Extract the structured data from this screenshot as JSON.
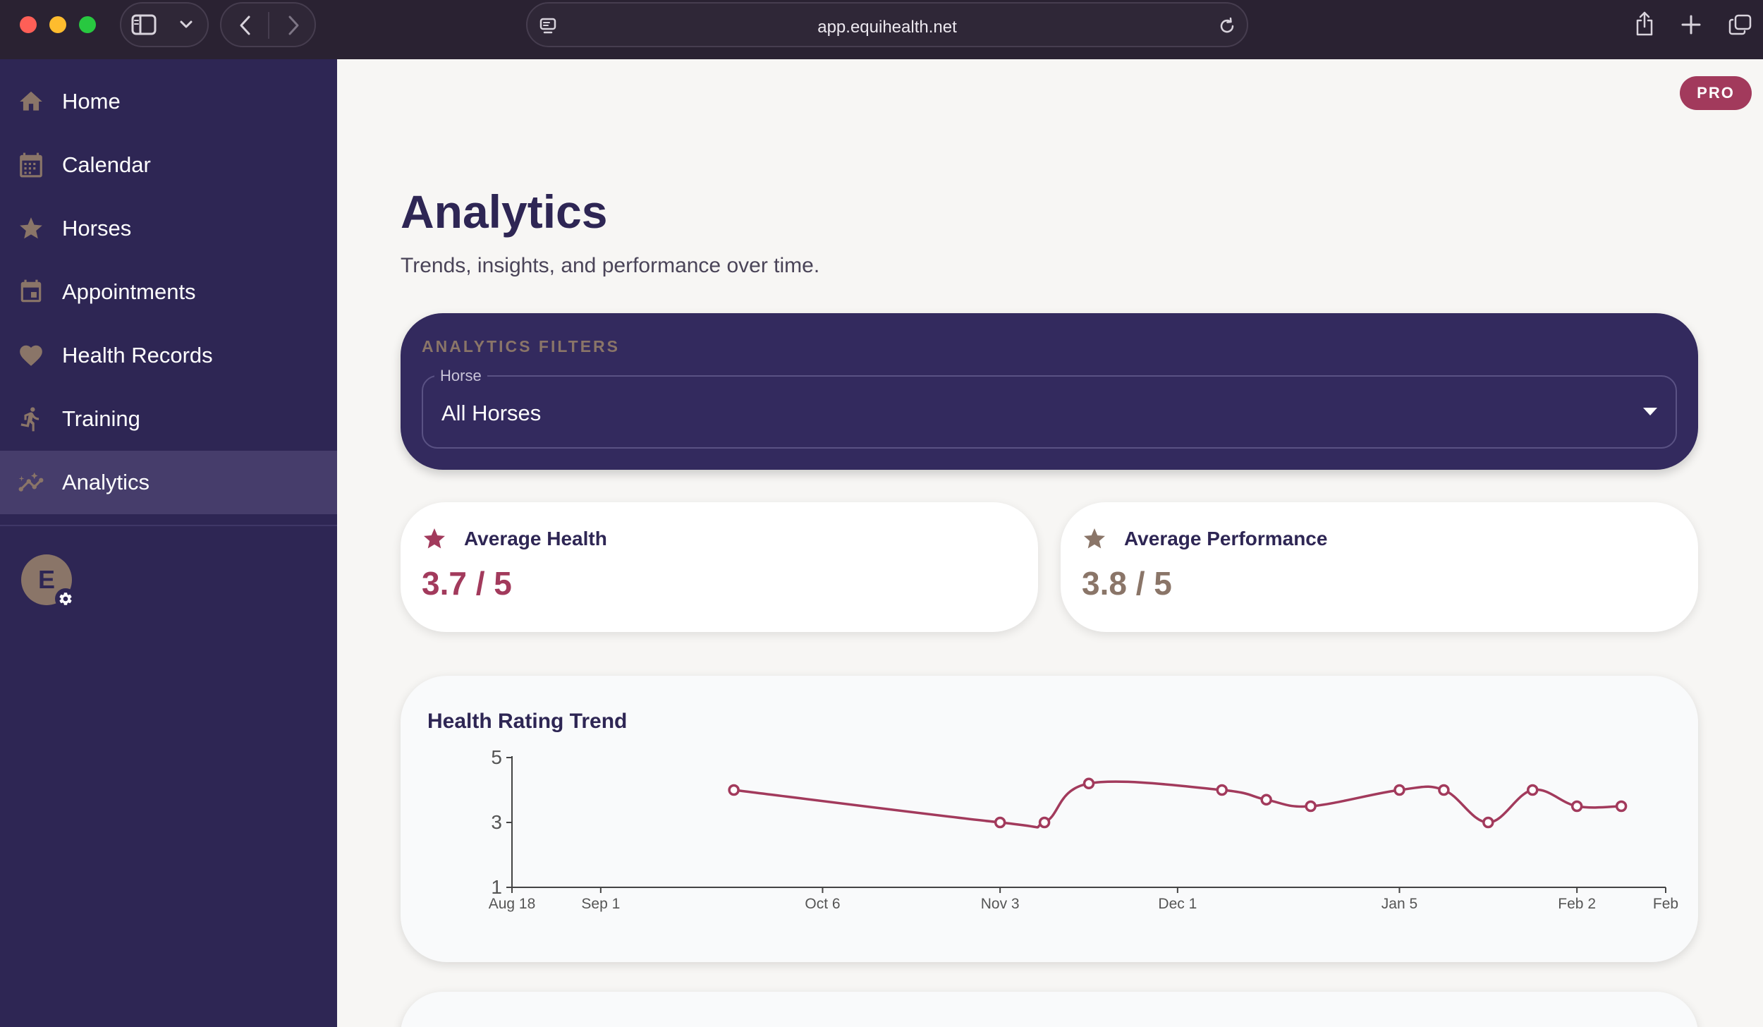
{
  "browser": {
    "url": "app.equihealth.net"
  },
  "sidebar": {
    "items": [
      {
        "label": "Home",
        "icon": "home-icon"
      },
      {
        "label": "Calendar",
        "icon": "calendar-icon"
      },
      {
        "label": "Horses",
        "icon": "star-icon"
      },
      {
        "label": "Appointments",
        "icon": "calendar-event-icon"
      },
      {
        "label": "Health Records",
        "icon": "heart-icon"
      },
      {
        "label": "Training",
        "icon": "running-icon"
      },
      {
        "label": "Analytics",
        "icon": "trend-icon",
        "active": true
      }
    ],
    "avatar_initial": "E"
  },
  "header": {
    "badge": "PRO",
    "title": "Analytics",
    "subtitle": "Trends, insights, and performance over time."
  },
  "filters": {
    "title": "ANALYTICS FILTERS",
    "horse_label": "Horse",
    "horse_value": "All Horses"
  },
  "stats": {
    "health": {
      "label": "Average Health",
      "value": "3.7 / 5",
      "color": "#a23a5c"
    },
    "performance": {
      "label": "Average Performance",
      "value": "3.8 / 5",
      "color": "#8a7568"
    }
  },
  "colors": {
    "sidebar_bg": "#2e2654",
    "accent": "#a23a5c",
    "muted_brown": "#8a7568"
  },
  "chart_data": {
    "type": "line",
    "title": "Health Rating Trend",
    "xlabel": "",
    "ylabel": "",
    "ylim": [
      1,
      5
    ],
    "yticks": [
      1,
      3,
      5
    ],
    "xlim": [
      "2024-08-18",
      "2025-02-16"
    ],
    "xticks": [
      {
        "date": "2024-08-18",
        "label": "Aug 18"
      },
      {
        "date": "2024-09-01",
        "label": "Sep 1"
      },
      {
        "date": "2024-10-06",
        "label": "Oct 6"
      },
      {
        "date": "2024-11-03",
        "label": "Nov 3"
      },
      {
        "date": "2024-12-01",
        "label": "Dec 1"
      },
      {
        "date": "2025-01-05",
        "label": "Jan 5"
      },
      {
        "date": "2025-02-02",
        "label": "Feb 2"
      },
      {
        "date": "2025-02-16",
        "label": "Feb"
      }
    ],
    "series": [
      {
        "color": "#a23a5c",
        "points": [
          {
            "x": "2024-09-22",
            "y": 4.0
          },
          {
            "x": "2024-11-03",
            "y": 3.0
          },
          {
            "x": "2024-11-10",
            "y": 3.0
          },
          {
            "x": "2024-11-17",
            "y": 4.2
          },
          {
            "x": "2024-12-08",
            "y": 4.0
          },
          {
            "x": "2024-12-15",
            "y": 3.7
          },
          {
            "x": "2024-12-22",
            "y": 3.5
          },
          {
            "x": "2025-01-05",
            "y": 4.0
          },
          {
            "x": "2025-01-12",
            "y": 4.0
          },
          {
            "x": "2025-01-19",
            "y": 3.0
          },
          {
            "x": "2025-01-26",
            "y": 4.0
          },
          {
            "x": "2025-02-02",
            "y": 3.5
          },
          {
            "x": "2025-02-09",
            "y": 3.5
          }
        ]
      }
    ],
    "grid": false
  }
}
